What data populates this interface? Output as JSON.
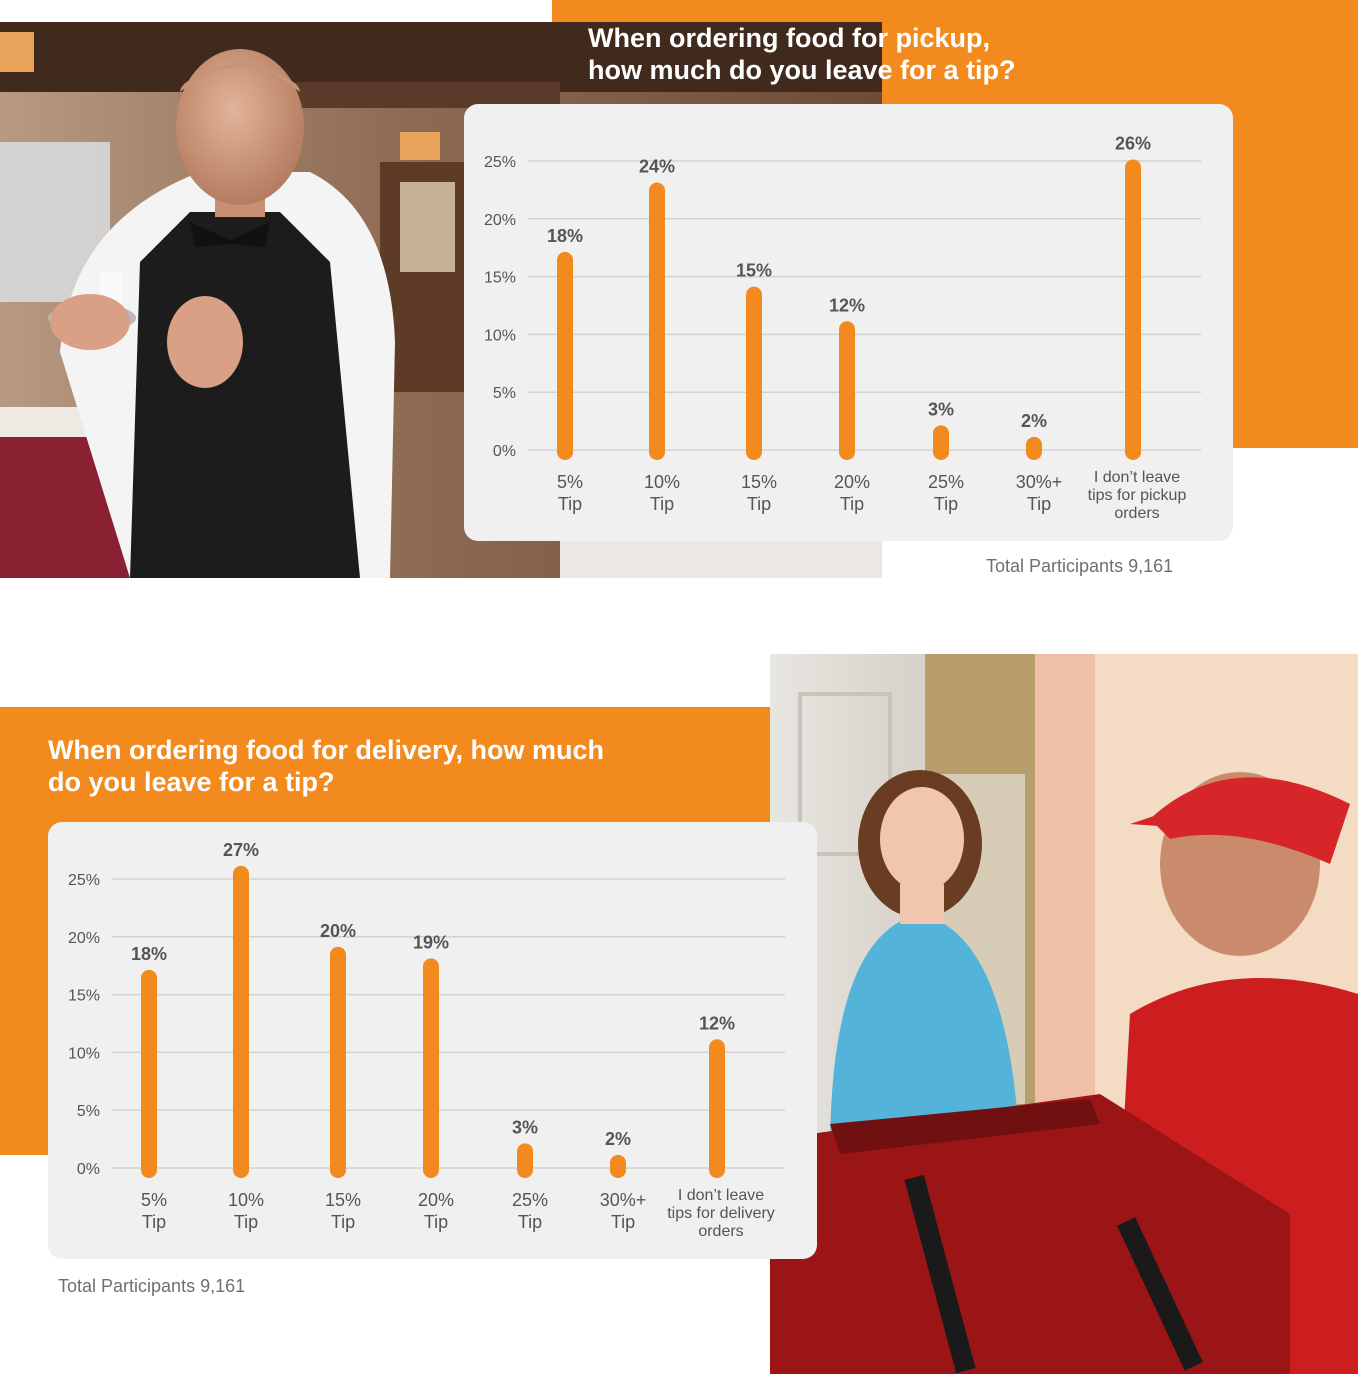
{
  "colors": {
    "accent": "#f28a1e",
    "bar": "#f28a1e",
    "card": "#f0f0f0",
    "text": "#555555"
  },
  "pickup": {
    "title_line1": "When ordering food for pickup,",
    "title_line2": "how much do you leave for a tip?",
    "total": "Total Participants 9,161"
  },
  "delivery": {
    "title_line1": "When ordering food for delivery, how much",
    "title_line2": "do you leave for a tip?",
    "total": "Total Participants 9,161"
  },
  "photos": {
    "waiter": "Waiter holding a plate with a receipt and a single coin",
    "delivery": "Delivery man with red insulated bag handing food to a young woman at a door"
  },
  "chart_data": [
    {
      "type": "bar",
      "categories": [
        [
          "5%",
          "Tip"
        ],
        [
          "10%",
          "Tip"
        ],
        [
          "15%",
          "Tip"
        ],
        [
          "20%",
          "Tip"
        ],
        [
          "25%",
          "Tip"
        ],
        [
          "30%+",
          "Tip"
        ],
        [
          "I don’t leave",
          "tips for pickup",
          "orders"
        ]
      ],
      "values": [
        18,
        24,
        15,
        12,
        3,
        2,
        26
      ],
      "value_labels": [
        "18%",
        "24%",
        "15%",
        "12%",
        "3%",
        "2%",
        "26%"
      ],
      "yticks": [
        "0%",
        "5%",
        "10%",
        "15%",
        "20%",
        "25%"
      ],
      "ylim": [
        0,
        25
      ],
      "grid": true,
      "title": "When ordering food for pickup, how much do you leave for a tip?"
    },
    {
      "type": "bar",
      "categories": [
        [
          "5%",
          "Tip"
        ],
        [
          "10%",
          "Tip"
        ],
        [
          "15%",
          "Tip"
        ],
        [
          "20%",
          "Tip"
        ],
        [
          "25%",
          "Tip"
        ],
        [
          "30%+",
          "Tip"
        ],
        [
          "I don’t leave",
          "tips for delivery",
          "orders"
        ]
      ],
      "values": [
        18,
        27,
        20,
        19,
        3,
        2,
        12
      ],
      "value_labels": [
        "18%",
        "27%",
        "20%",
        "19%",
        "3%",
        "2%",
        "12%"
      ],
      "yticks": [
        "0%",
        "5%",
        "10%",
        "15%",
        "20%",
        "25%"
      ],
      "ylim": [
        0,
        25
      ],
      "grid": true,
      "title": "When ordering food for delivery, how much do you leave for a tip?"
    }
  ]
}
